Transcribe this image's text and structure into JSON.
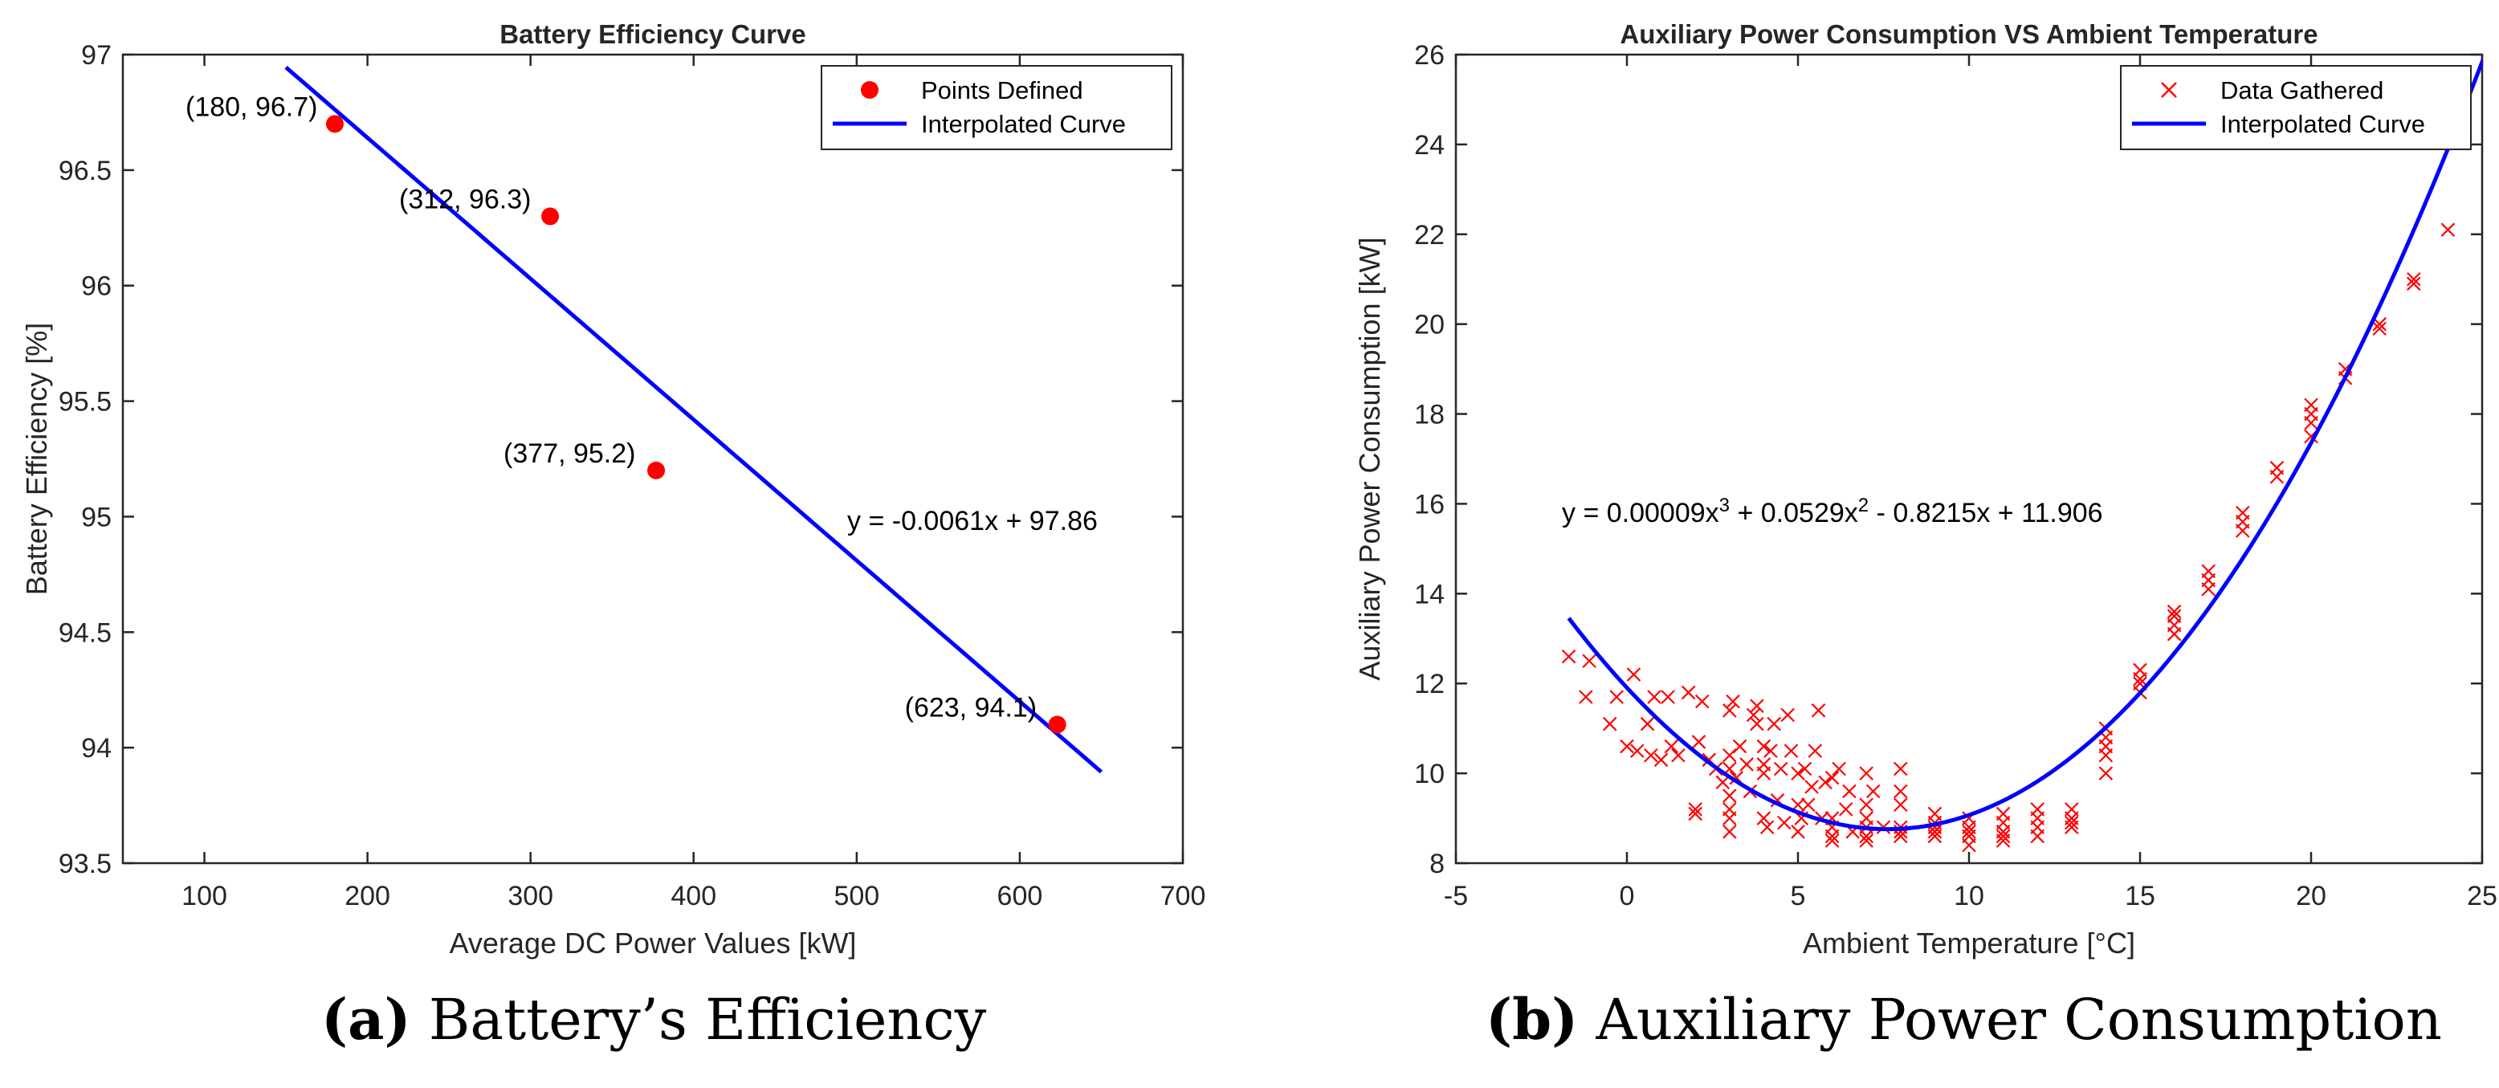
{
  "colors": {
    "marker": "#ff0000",
    "curve": "#0000ff",
    "axis": "#262626",
    "text": "#000000"
  },
  "captions": [
    {
      "tag": "(a)",
      "text": "Battery’s Efficiency"
    },
    {
      "tag": "(b)",
      "text": "Auxiliary Power Consumption"
    }
  ],
  "chart_data": [
    {
      "type": "scatter",
      "title": "Battery Efficiency Curve",
      "xlabel": "Average DC Power Values [kW]",
      "ylabel": "Battery Efficiency [%]",
      "xlim": [
        50,
        700
      ],
      "ylim": [
        93.5,
        97
      ],
      "xticks": [
        100,
        200,
        300,
        400,
        500,
        600,
        700
      ],
      "yticks": [
        93.5,
        94,
        94.5,
        95,
        95.5,
        96,
        96.5,
        97
      ],
      "xtick_labels": [
        "100",
        "200",
        "300",
        "400",
        "500",
        "600",
        "700"
      ],
      "ytick_labels": [
        "93.5",
        "94",
        "94.5",
        "95",
        "95.5",
        "96",
        "96.5",
        "97"
      ],
      "legend": {
        "position": "top-right",
        "entries": [
          "Points Defined",
          "Interpolated Curve"
        ]
      },
      "series": [
        {
          "name": "Points Defined",
          "marker": "dot",
          "x": [
            180,
            312,
            377,
            623
          ],
          "y": [
            96.7,
            96.3,
            95.2,
            94.1
          ]
        },
        {
          "name": "Interpolated Curve",
          "kind": "fit",
          "coeffs": [
            -0.0061,
            97.86
          ],
          "range": [
            150,
            650
          ]
        }
      ],
      "point_labels": [
        "(180, 96.7)",
        "(312, 96.3)",
        "(377, 95.2)",
        "(623, 94.1)"
      ],
      "equation": "y = -0.0061x + 97.86"
    },
    {
      "type": "scatter",
      "title": "Auxiliary Power Consumption VS Ambient Temperature",
      "xlabel": "Ambient Temperature [°C]",
      "ylabel": "Auxiliary Power Consumption [kW]",
      "xlim": [
        -5,
        25
      ],
      "ylim": [
        8,
        26
      ],
      "xticks": [
        -5,
        0,
        5,
        10,
        15,
        20,
        25
      ],
      "yticks": [
        8,
        10,
        12,
        14,
        16,
        18,
        20,
        22,
        24,
        26
      ],
      "xtick_labels": [
        "-5",
        "0",
        "5",
        "10",
        "15",
        "20",
        "25"
      ],
      "ytick_labels": [
        "8",
        "10",
        "12",
        "14",
        "16",
        "18",
        "20",
        "22",
        "24",
        "26"
      ],
      "legend": {
        "position": "top-right",
        "entries": [
          "Data Gathered",
          "Interpolated Curve"
        ]
      },
      "series": [
        {
          "name": "Data Gathered",
          "marker": "x",
          "points": [
            [
              -1.7,
              12.6
            ],
            [
              -1.2,
              11.7
            ],
            [
              -1.1,
              12.5
            ],
            [
              -0.5,
              11.1
            ],
            [
              -0.3,
              11.7
            ],
            [
              0.0,
              10.6
            ],
            [
              0.2,
              12.2
            ],
            [
              0.3,
              10.5
            ],
            [
              0.6,
              11.1
            ],
            [
              0.7,
              10.4
            ],
            [
              0.8,
              11.7
            ],
            [
              1.0,
              10.3
            ],
            [
              1.2,
              11.7
            ],
            [
              1.3,
              10.6
            ],
            [
              1.5,
              10.4
            ],
            [
              1.8,
              11.8
            ],
            [
              2.0,
              9.2
            ],
            [
              2.0,
              9.1
            ],
            [
              2.1,
              10.7
            ],
            [
              2.2,
              11.6
            ],
            [
              2.4,
              10.3
            ],
            [
              2.6,
              10.1
            ],
            [
              2.8,
              9.8
            ],
            [
              3.0,
              9.2
            ],
            [
              3.0,
              8.7
            ],
            [
              3.0,
              9.0
            ],
            [
              3.0,
              9.5
            ],
            [
              3.0,
              10.1
            ],
            [
              3.0,
              10.4
            ],
            [
              3.0,
              11.4
            ],
            [
              3.1,
              11.6
            ],
            [
              3.2,
              9.9
            ],
            [
              3.3,
              10.6
            ],
            [
              3.5,
              10.2
            ],
            [
              3.6,
              9.6
            ],
            [
              3.7,
              11.3
            ],
            [
              3.8,
              11.1
            ],
            [
              3.8,
              11.5
            ],
            [
              4.0,
              10.2
            ],
            [
              4.0,
              10.6
            ],
            [
              4.0,
              10.0
            ],
            [
              4.0,
              9.0
            ],
            [
              4.1,
              8.8
            ],
            [
              4.2,
              10.5
            ],
            [
              4.3,
              11.1
            ],
            [
              4.4,
              9.4
            ],
            [
              4.5,
              10.1
            ],
            [
              4.6,
              8.9
            ],
            [
              4.7,
              11.3
            ],
            [
              4.8,
              10.5
            ],
            [
              5.0,
              10.0
            ],
            [
              5.0,
              9.3
            ],
            [
              5.0,
              8.7
            ],
            [
              5.1,
              9.0
            ],
            [
              5.2,
              10.1
            ],
            [
              5.3,
              9.3
            ],
            [
              5.4,
              9.7
            ],
            [
              5.5,
              10.5
            ],
            [
              5.6,
              11.4
            ],
            [
              5.7,
              9.0
            ],
            [
              5.8,
              9.8
            ],
            [
              6.0,
              8.5
            ],
            [
              6.0,
              8.8
            ],
            [
              6.0,
              9.0
            ],
            [
              6.0,
              8.6
            ],
            [
              6.0,
              9.9
            ],
            [
              6.2,
              10.1
            ],
            [
              6.4,
              9.2
            ],
            [
              6.5,
              9.6
            ],
            [
              6.6,
              8.7
            ],
            [
              7.0,
              8.5
            ],
            [
              7.0,
              8.6
            ],
            [
              7.0,
              8.8
            ],
            [
              7.0,
              9.0
            ],
            [
              7.0,
              9.3
            ],
            [
              7.0,
              10.0
            ],
            [
              7.2,
              9.6
            ],
            [
              7.5,
              8.8
            ],
            [
              8.0,
              8.6
            ],
            [
              8.0,
              8.7
            ],
            [
              8.0,
              8.8
            ],
            [
              8.0,
              9.3
            ],
            [
              8.0,
              9.6
            ],
            [
              8.0,
              10.1
            ],
            [
              9.0,
              8.6
            ],
            [
              9.0,
              8.7
            ],
            [
              9.0,
              8.8
            ],
            [
              9.0,
              8.9
            ],
            [
              9.0,
              9.1
            ],
            [
              10.0,
              8.4
            ],
            [
              10.0,
              8.6
            ],
            [
              10.0,
              8.7
            ],
            [
              10.0,
              8.8
            ],
            [
              10.0,
              9.0
            ],
            [
              11.0,
              8.5
            ],
            [
              11.0,
              8.6
            ],
            [
              11.0,
              8.7
            ],
            [
              11.0,
              8.9
            ],
            [
              11.0,
              9.1
            ],
            [
              12.0,
              8.6
            ],
            [
              12.0,
              8.8
            ],
            [
              12.0,
              9.0
            ],
            [
              12.0,
              9.2
            ],
            [
              13.0,
              8.8
            ],
            [
              13.0,
              8.9
            ],
            [
              13.0,
              9.0
            ],
            [
              13.0,
              9.2
            ],
            [
              14.0,
              10.0
            ],
            [
              14.0,
              10.4
            ],
            [
              14.0,
              10.6
            ],
            [
              14.0,
              10.8
            ],
            [
              14.0,
              11.0
            ],
            [
              15.0,
              11.8
            ],
            [
              15.0,
              12.0
            ],
            [
              15.0,
              12.1
            ],
            [
              15.0,
              12.3
            ],
            [
              16.0,
              13.1
            ],
            [
              16.0,
              13.3
            ],
            [
              16.0,
              13.5
            ],
            [
              16.0,
              13.6
            ],
            [
              17.0,
              14.1
            ],
            [
              17.0,
              14.3
            ],
            [
              17.0,
              14.5
            ],
            [
              18.0,
              15.4
            ],
            [
              18.0,
              15.6
            ],
            [
              18.0,
              15.8
            ],
            [
              19.0,
              16.6
            ],
            [
              19.0,
              16.8
            ],
            [
              20.0,
              17.5
            ],
            [
              20.0,
              17.8
            ],
            [
              20.0,
              18.0
            ],
            [
              20.0,
              18.2
            ],
            [
              21.0,
              18.8
            ],
            [
              21.0,
              19.0
            ],
            [
              22.0,
              19.9
            ],
            [
              22.0,
              20.0
            ],
            [
              23.0,
              20.9
            ],
            [
              23.0,
              21.0
            ],
            [
              24.0,
              22.1
            ]
          ]
        },
        {
          "name": "Interpolated Curve",
          "kind": "fit",
          "coeffs": [
            9e-05,
            0.0529,
            -0.8215,
            11.906
          ],
          "range": [
            -1.7,
            25.2
          ]
        }
      ],
      "equation": {
        "base": "y = 0.00009x",
        "sup1": "3",
        "mid": " + 0.0529x",
        "sup2": "2",
        "tail": " - 0.8215x + 11.906"
      }
    }
  ]
}
